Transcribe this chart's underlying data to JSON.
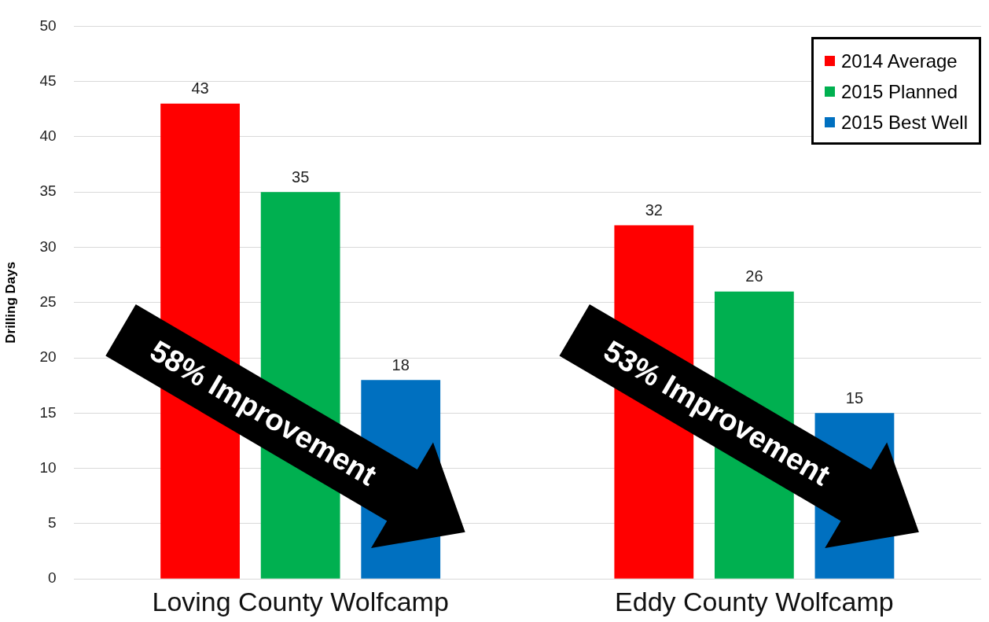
{
  "chart_data": {
    "type": "bar",
    "ylabel": "Drilling Days",
    "categories": [
      "Loving County Wolfcamp",
      "Eddy County Wolfcamp"
    ],
    "series": [
      {
        "name": "2014 Average",
        "color": "#ff0000",
        "values": [
          43,
          32
        ]
      },
      {
        "name": "2015 Planned",
        "color": "#00b050",
        "values": [
          35,
          26
        ]
      },
      {
        "name": "2015 Best Well",
        "color": "#0070c0",
        "values": [
          18,
          15
        ]
      }
    ],
    "ylim": [
      0,
      50
    ],
    "yticks": [
      0,
      5,
      10,
      15,
      20,
      25,
      30,
      35,
      40,
      45,
      50
    ],
    "grid": "y",
    "legend": "top right",
    "data_labels": true,
    "annotations": [
      "58% Improvement",
      "53% Improvement"
    ]
  }
}
